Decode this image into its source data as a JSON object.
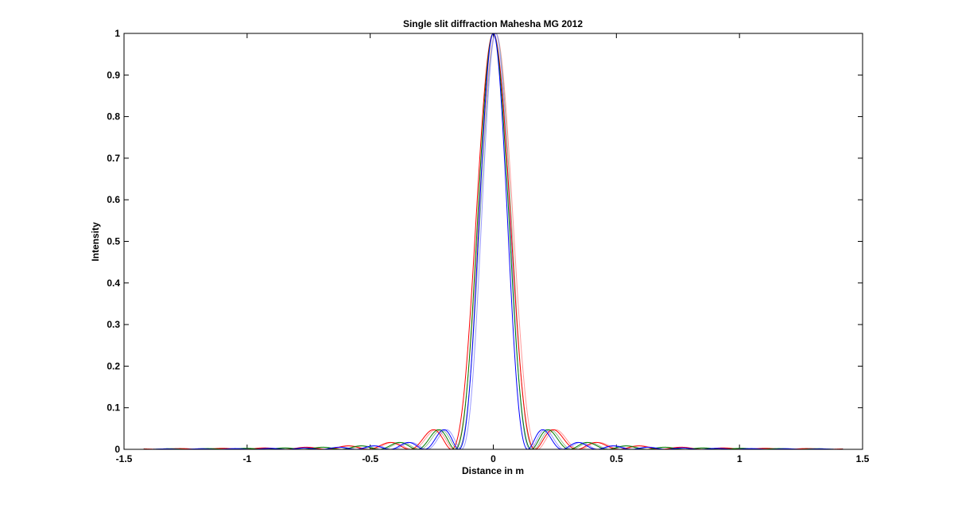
{
  "chart_data": {
    "type": "line",
    "title": "Single slit diffraction  Mahesha MG 2012",
    "xlabel": "Distance in m",
    "ylabel": "Intensity",
    "xlim": [
      -1.5,
      1.5
    ],
    "ylim": [
      0,
      1
    ],
    "xticks": [
      -1.5,
      -1,
      -0.5,
      0,
      0.5,
      1,
      1.5
    ],
    "xtick_labels": [
      "-1.5",
      "-1",
      "-0.5",
      "0",
      "0.5",
      "1",
      "1.5"
    ],
    "yticks": [
      0,
      0.1,
      0.2,
      0.3,
      0.4,
      0.5,
      0.6,
      0.7,
      0.8,
      0.9,
      1
    ],
    "ytick_labels": [
      "0",
      "0.1",
      "0.2",
      "0.3",
      "0.4",
      "0.5",
      "0.6",
      "0.7",
      "0.8",
      "0.9",
      "1"
    ],
    "grid": false,
    "legend": "none",
    "x_data_range": [
      -1.42,
      1.42
    ],
    "curve_form": "sinc^2",
    "series": [
      {
        "color": "#ff9999",
        "peak": 1,
        "first_zero": 0.17,
        "center": 0.01
      },
      {
        "color": "#99bb99",
        "peak": 1,
        "first_zero": 0.155,
        "center": 0.01
      },
      {
        "color": "#9999ff",
        "peak": 1,
        "first_zero": 0.14,
        "center": 0.01
      },
      {
        "color": "#ff0000",
        "peak": 1,
        "first_zero": 0.17,
        "center": 0
      },
      {
        "color": "#007f00",
        "peak": 1,
        "first_zero": 0.155,
        "center": 0
      },
      {
        "color": "#0000ff",
        "peak": 1,
        "first_zero": 0.14,
        "center": 0
      }
    ]
  }
}
